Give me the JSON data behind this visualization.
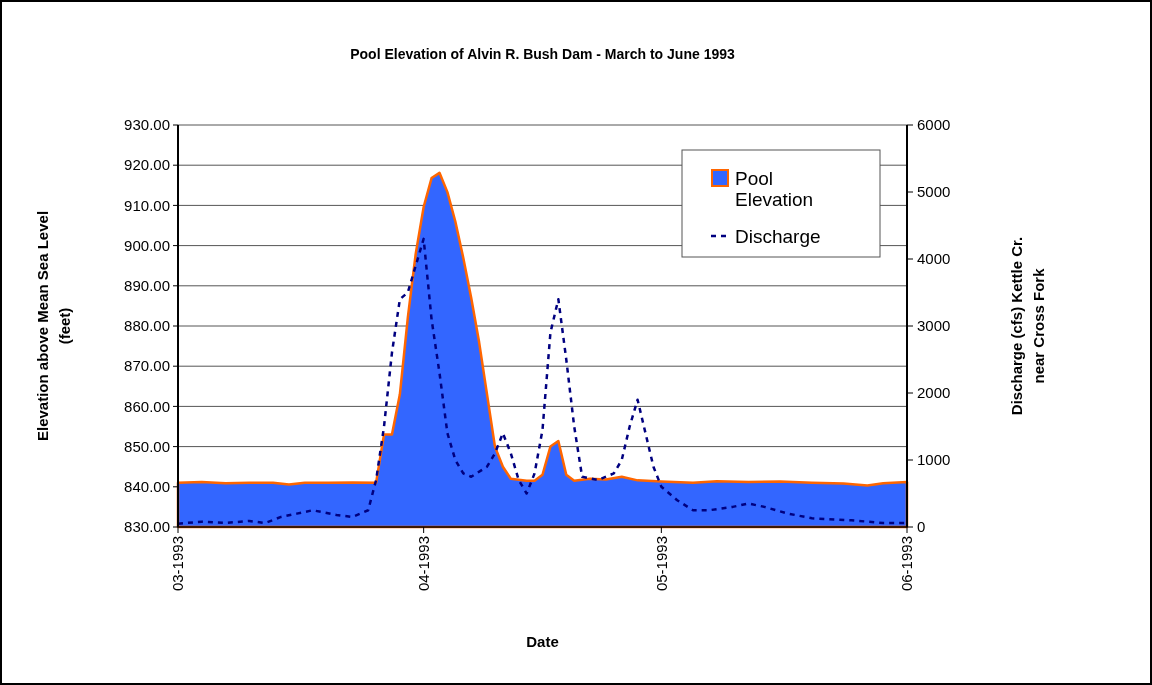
{
  "chart_data": {
    "type": "area",
    "title": "Pool Elevation of Alvin R. Bush Dam - March to June 1993",
    "xlabel": "Date",
    "ylabel": "Elevation above Mean Sea Level (feet)",
    "y2label": "Discharge (cfs) Kettle Cr. near Cross Fork",
    "xlim": [
      "1993-03-01",
      "1993-06-01"
    ],
    "xticks": [
      {
        "value": "1993-03-01",
        "label": "03-1993"
      },
      {
        "value": "1993-04-01",
        "label": "04-1993"
      },
      {
        "value": "1993-05-01",
        "label": "05-1993"
      },
      {
        "value": "1993-06-01",
        "label": "06-1993"
      }
    ],
    "ylim": [
      830,
      930
    ],
    "yticks": [
      {
        "value": 830,
        "label": "830.00"
      },
      {
        "value": 840,
        "label": "840.00"
      },
      {
        "value": 850,
        "label": "850.00"
      },
      {
        "value": 860,
        "label": "860.00"
      },
      {
        "value": 870,
        "label": "870.00"
      },
      {
        "value": 880,
        "label": "880.00"
      },
      {
        "value": 890,
        "label": "890.00"
      },
      {
        "value": 900,
        "label": "900.00"
      },
      {
        "value": 910,
        "label": "910.00"
      },
      {
        "value": 920,
        "label": "920.00"
      },
      {
        "value": 930,
        "label": "930.00"
      }
    ],
    "y2lim": [
      0,
      6000
    ],
    "y2ticks": [
      0,
      1000,
      2000,
      3000,
      4000,
      5000,
      6000
    ],
    "grid": "y",
    "legend": "top right",
    "series": [
      {
        "name": "Pool Elevation",
        "color": "#3366ff",
        "x": [
          "1993-03-01",
          "1993-03-04",
          "1993-03-07",
          "1993-03-10",
          "1993-03-13",
          "1993-03-15",
          "1993-03-17",
          "1993-03-20",
          "1993-03-23",
          "1993-03-26",
          "1993-03-27",
          "1993-03-28",
          "1993-03-29",
          "1993-03-30",
          "1993-03-31",
          "1993-04-01",
          "1993-04-02",
          "1993-04-03",
          "1993-04-04",
          "1993-04-05",
          "1993-04-06",
          "1993-04-07",
          "1993-04-08",
          "1993-04-09",
          "1993-04-10",
          "1993-04-11",
          "1993-04-12",
          "1993-04-14",
          "1993-04-15",
          "1993-04-16",
          "1993-04-17",
          "1993-04-18",
          "1993-04-19",
          "1993-04-20",
          "1993-04-22",
          "1993-04-24",
          "1993-04-26",
          "1993-04-28",
          "1993-05-01",
          "1993-05-05",
          "1993-05-08",
          "1993-05-12",
          "1993-05-16",
          "1993-05-20",
          "1993-05-24",
          "1993-05-27",
          "1993-05-29",
          "1993-06-01"
        ],
        "values": [
          841,
          841.2,
          840.9,
          841,
          841,
          840.6,
          841,
          841,
          841.1,
          841,
          853,
          853,
          863,
          882,
          898,
          909.6,
          916.8,
          918.1,
          913.3,
          906,
          897,
          887,
          876,
          863,
          850,
          845,
          842,
          841.5,
          841.5,
          843,
          850,
          851.4,
          843,
          841.5,
          842,
          841.8,
          842.5,
          841.6,
          841.3,
          841,
          841.4,
          841.2,
          841.3,
          841,
          840.8,
          840.3,
          840.9,
          841.2
        ]
      },
      {
        "name": "Discharge",
        "type": "line",
        "axis": "y2",
        "color": "#000080",
        "line_style": "dashed",
        "x": [
          "1993-03-01",
          "1993-03-04",
          "1993-03-07",
          "1993-03-10",
          "1993-03-12",
          "1993-03-14",
          "1993-03-16",
          "1993-03-18",
          "1993-03-21",
          "1993-03-23",
          "1993-03-25",
          "1993-03-26",
          "1993-03-27",
          "1993-03-28",
          "1993-03-29",
          "1993-03-30",
          "1993-04-01",
          "1993-04-02",
          "1993-04-03",
          "1993-04-04",
          "1993-04-05",
          "1993-04-06",
          "1993-04-07",
          "1993-04-09",
          "1993-04-10",
          "1993-04-11",
          "1993-04-12",
          "1993-04-13",
          "1993-04-14",
          "1993-04-15",
          "1993-04-16",
          "1993-04-17",
          "1993-04-18",
          "1993-04-19",
          "1993-04-20",
          "1993-04-21",
          "1993-04-23",
          "1993-04-25",
          "1993-04-26",
          "1993-04-27",
          "1993-04-28",
          "1993-04-29",
          "1993-04-30",
          "1993-05-01",
          "1993-05-03",
          "1993-05-05",
          "1993-05-07",
          "1993-05-10",
          "1993-05-12",
          "1993-05-14",
          "1993-05-17",
          "1993-05-20",
          "1993-05-25",
          "1993-05-29",
          "1993-06-01"
        ],
        "values": [
          50,
          80,
          60,
          90,
          60,
          150,
          200,
          250,
          180,
          150,
          250,
          700,
          1500,
          2600,
          3400,
          3500,
          4300,
          3100,
          2300,
          1400,
          1000,
          800,
          750,
          900,
          1100,
          1400,
          1100,
          700,
          500,
          800,
          1450,
          2900,
          3400,
          2500,
          1500,
          750,
          700,
          800,
          1000,
          1500,
          1900,
          1400,
          900,
          600,
          400,
          250,
          250,
          300,
          350,
          300,
          200,
          130,
          100,
          60,
          60
        ]
      }
    ]
  }
}
